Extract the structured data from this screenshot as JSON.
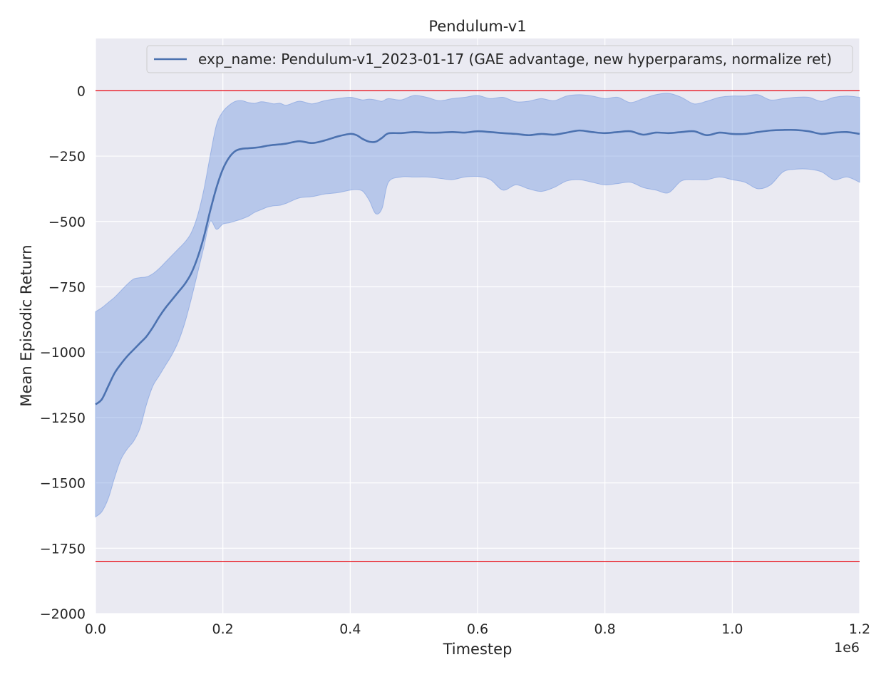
{
  "chart_data": {
    "type": "line",
    "title": "Pendulum-v1",
    "xlabel": "Timestep",
    "ylabel": "Mean Episodic Return",
    "x_offset_label": "1e6",
    "xlim": [
      0,
      1.2
    ],
    "ylim": [
      -2000,
      200
    ],
    "x_ticks": [
      0.0,
      0.2,
      0.4,
      0.6,
      0.8,
      1.0,
      1.2
    ],
    "x_tick_labels": [
      "0.0",
      "0.2",
      "0.4",
      "0.6",
      "0.8",
      "1.0",
      "1.2"
    ],
    "y_ticks": [
      0,
      -250,
      -500,
      -750,
      -1000,
      -1250,
      -1500,
      -1750,
      -2000
    ],
    "y_tick_labels": [
      "0",
      "−250",
      "−500",
      "−750",
      "−1000",
      "−1250",
      "−1500",
      "−1750",
      "−2000"
    ],
    "grid": true,
    "legend_position": "top-right",
    "reference_lines": [
      {
        "y": 0,
        "color": "#e8000b"
      },
      {
        "y": -1800,
        "color": "#e8000b"
      }
    ],
    "series": [
      {
        "name": "exp_name: Pendulum-v1_2023-01-17 (GAE advantage, new hyperparams, normalize ret)",
        "color": "#4c72b0",
        "band_color": "#7b9de0",
        "x": [
          0.0,
          0.01,
          0.02,
          0.03,
          0.04,
          0.05,
          0.06,
          0.07,
          0.08,
          0.09,
          0.1,
          0.11,
          0.12,
          0.13,
          0.14,
          0.15,
          0.16,
          0.17,
          0.18,
          0.19,
          0.2,
          0.21,
          0.22,
          0.23,
          0.24,
          0.25,
          0.26,
          0.27,
          0.28,
          0.29,
          0.3,
          0.32,
          0.34,
          0.36,
          0.38,
          0.4,
          0.41,
          0.42,
          0.43,
          0.44,
          0.45,
          0.46,
          0.48,
          0.5,
          0.52,
          0.54,
          0.56,
          0.58,
          0.6,
          0.62,
          0.64,
          0.66,
          0.68,
          0.7,
          0.72,
          0.74,
          0.76,
          0.78,
          0.8,
          0.82,
          0.84,
          0.86,
          0.88,
          0.9,
          0.92,
          0.94,
          0.96,
          0.98,
          1.0,
          1.02,
          1.04,
          1.06,
          1.08,
          1.1,
          1.12,
          1.14,
          1.16,
          1.18,
          1.2
        ],
        "mean": [
          -1200,
          -1180,
          -1130,
          -1080,
          -1045,
          -1015,
          -990,
          -965,
          -940,
          -905,
          -865,
          -830,
          -800,
          -770,
          -740,
          -700,
          -640,
          -560,
          -460,
          -370,
          -300,
          -255,
          -230,
          -222,
          -220,
          -218,
          -215,
          -210,
          -207,
          -205,
          -202,
          -193,
          -200,
          -190,
          -175,
          -165,
          -170,
          -185,
          -195,
          -195,
          -180,
          -163,
          -162,
          -158,
          -160,
          -160,
          -158,
          -160,
          -155,
          -158,
          -162,
          -165,
          -170,
          -165,
          -168,
          -160,
          -152,
          -158,
          -162,
          -158,
          -155,
          -168,
          -160,
          -162,
          -158,
          -155,
          -170,
          -160,
          -165,
          -165,
          -158,
          -152,
          -150,
          -150,
          -155,
          -165,
          -160,
          -158,
          -165
        ],
        "upper": [
          -845,
          -830,
          -810,
          -790,
          -765,
          -740,
          -720,
          -715,
          -712,
          -700,
          -680,
          -655,
          -630,
          -605,
          -580,
          -545,
          -480,
          -380,
          -250,
          -130,
          -80,
          -55,
          -40,
          -38,
          -45,
          -48,
          -42,
          -45,
          -50,
          -48,
          -55,
          -40,
          -50,
          -38,
          -30,
          -25,
          -30,
          -35,
          -32,
          -35,
          -40,
          -30,
          -35,
          -18,
          -25,
          -38,
          -30,
          -25,
          -18,
          -30,
          -25,
          -42,
          -40,
          -30,
          -38,
          -20,
          -15,
          -20,
          -30,
          -25,
          -45,
          -30,
          -15,
          -10,
          -25,
          -50,
          -40,
          -25,
          -20,
          -20,
          -15,
          -35,
          -30,
          -25,
          -25,
          -40,
          -25,
          -20,
          -25
        ],
        "lower": [
          -1630,
          -1610,
          -1560,
          -1480,
          -1410,
          -1370,
          -1340,
          -1290,
          -1200,
          -1130,
          -1090,
          -1050,
          -1010,
          -960,
          -890,
          -800,
          -700,
          -600,
          -500,
          -530,
          -510,
          -505,
          -498,
          -490,
          -480,
          -465,
          -455,
          -445,
          -440,
          -438,
          -430,
          -410,
          -405,
          -395,
          -390,
          -380,
          -378,
          -385,
          -420,
          -470,
          -450,
          -350,
          -330,
          -330,
          -330,
          -335,
          -340,
          -330,
          -328,
          -340,
          -380,
          -360,
          -375,
          -385,
          -370,
          -345,
          -340,
          -350,
          -360,
          -355,
          -350,
          -370,
          -380,
          -390,
          -345,
          -340,
          -340,
          -330,
          -340,
          -350,
          -375,
          -360,
          -310,
          -300,
          -300,
          -310,
          -340,
          -330,
          -350
        ]
      }
    ]
  }
}
